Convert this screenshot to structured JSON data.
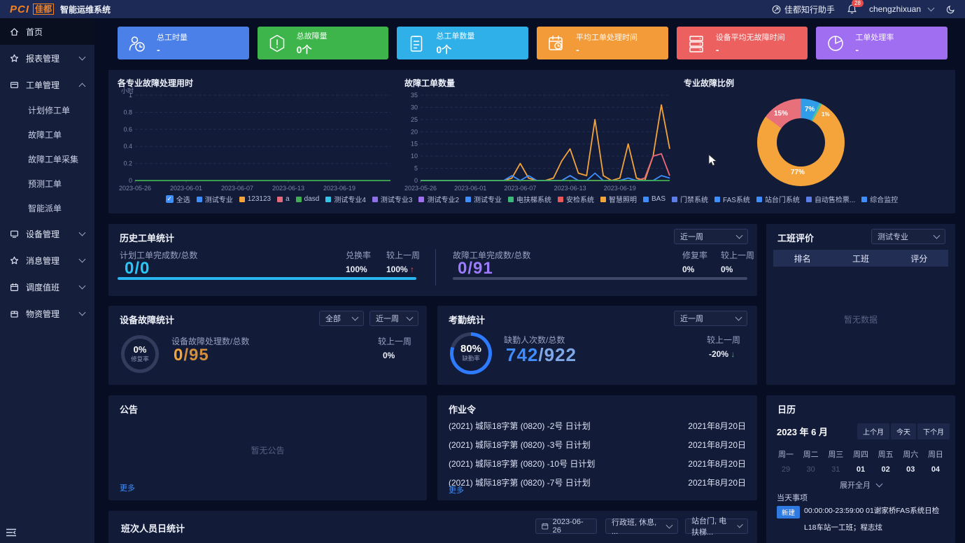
{
  "header": {
    "logo_pci": "PCI",
    "logo_jiadu": "佳都",
    "app_title": "智能运维系统",
    "assistant_label": "佳都知行助手",
    "notification_count": "28",
    "username": "chengzhixuan"
  },
  "sidebar": {
    "items": [
      {
        "name": "home",
        "label": "首页",
        "icon": "home-icon",
        "type": "item",
        "active": true
      },
      {
        "name": "reports",
        "label": "报表管理",
        "icon": "report-icon",
        "type": "item",
        "arrow": "down"
      },
      {
        "name": "workorders",
        "label": "工单管理",
        "icon": "workorder-icon",
        "type": "item",
        "arrow": "up"
      },
      {
        "name": "planned-repair-workorder",
        "label": "计划修工单",
        "type": "child"
      },
      {
        "name": "fault-workorder",
        "label": "故障工单",
        "type": "child"
      },
      {
        "name": "fault-workorder-collect",
        "label": "故障工单采集",
        "type": "child"
      },
      {
        "name": "forecast-workorder",
        "label": "预测工单",
        "type": "child"
      },
      {
        "name": "smart-dispatch",
        "label": "智能派单",
        "type": "child"
      },
      {
        "name": "devices",
        "label": "设备管理",
        "icon": "device-icon",
        "type": "item",
        "arrow": "down"
      },
      {
        "name": "messages",
        "label": "消息管理",
        "icon": "message-icon",
        "type": "item",
        "arrow": "down"
      },
      {
        "name": "dispatch-duty",
        "label": "调度值班",
        "icon": "schedule-icon",
        "type": "item",
        "arrow": "down"
      },
      {
        "name": "materials",
        "label": "物资管理",
        "icon": "material-icon",
        "type": "item",
        "arrow": "down"
      }
    ]
  },
  "stat_cards": [
    {
      "title": "总工时量",
      "value": "-",
      "color": "#4a80e8",
      "icon": "user-clock-icon"
    },
    {
      "title": "总故障量",
      "value": "0个",
      "color": "#3db54a",
      "icon": "alert-hexagon-icon"
    },
    {
      "title": "总工单数量",
      "value": "0个",
      "color": "#2fb0e8",
      "icon": "clipboard-icon"
    },
    {
      "title": "平均工单处理时间",
      "value": "-",
      "color": "#f29b38",
      "icon": "calendar-clock-icon"
    },
    {
      "title": "设备平均无故障时间",
      "value": "-",
      "color": "#ec6060",
      "icon": "server-icon"
    },
    {
      "title": "工单处理率",
      "value": "-",
      "color": "#a06ef0",
      "icon": "pie-chart-icon"
    }
  ],
  "chart_data": [
    {
      "type": "line",
      "title": "各专业故障处理用时",
      "ylabel": "小时",
      "yticks": [
        0,
        0.2,
        0.4,
        0.6,
        0.8,
        1
      ],
      "ylim": [
        0,
        1
      ],
      "x_tick_labels": [
        "2023-05-26",
        "2023-06-01",
        "2023-06-07",
        "2023-06-13",
        "2023-06-19"
      ],
      "x_tick_pos": [
        0,
        6,
        12,
        18,
        24
      ],
      "x_count": 31,
      "series": [
        {
          "name": "dasd",
          "color": "#3fae52",
          "values": [
            0,
            0,
            0,
            0,
            0,
            0,
            0,
            0,
            0,
            0,
            0,
            0,
            0,
            0,
            0,
            0,
            0,
            0,
            0,
            0,
            0,
            0,
            0,
            0,
            0,
            0,
            0,
            0,
            0,
            0,
            0
          ]
        }
      ]
    },
    {
      "type": "line",
      "title": "故障工单数量",
      "ylabel": "",
      "yticks": [
        0,
        5,
        10,
        15,
        20,
        25,
        30,
        35
      ],
      "ylim": [
        0,
        35
      ],
      "x_tick_labels": [
        "2023-05-26",
        "2023-06-01",
        "2023-06-07",
        "2023-06-13",
        "2023-06-19"
      ],
      "x_tick_pos": [
        0,
        6,
        12,
        18,
        24
      ],
      "x_count": 31,
      "series": [
        {
          "name": "123123",
          "color": "#f5a43c",
          "values": [
            0,
            0,
            0,
            0,
            0,
            0,
            0,
            0,
            0,
            0,
            0,
            1,
            7,
            1,
            0,
            0,
            1,
            8,
            13,
            3,
            2,
            25,
            2,
            0,
            1,
            15,
            1,
            0,
            10,
            31,
            13
          ]
        },
        {
          "name": "a",
          "color": "#e86a78",
          "values": [
            0,
            0,
            0,
            0,
            0,
            0,
            0,
            0,
            0,
            0,
            0,
            0,
            0,
            0,
            0,
            0,
            0,
            0,
            2,
            0,
            0,
            0,
            0,
            0,
            0,
            0,
            0,
            1,
            10,
            11,
            2
          ]
        },
        {
          "name": "测试专业",
          "color": "#3d8eff",
          "values": [
            0,
            0,
            0,
            0,
            0,
            0,
            0,
            0,
            0,
            0,
            0,
            2,
            0,
            2,
            0,
            0,
            0,
            0,
            2,
            0,
            0,
            3,
            0,
            0,
            0,
            1,
            0,
            0,
            0,
            2,
            1
          ]
        },
        {
          "name": "dasd",
          "color": "#3fae52",
          "values": [
            0,
            0,
            0,
            0,
            0,
            0,
            0,
            0,
            0,
            0,
            0,
            0,
            0,
            0,
            0,
            0,
            0,
            0,
            0,
            0,
            0,
            0,
            0,
            0,
            0,
            0,
            0,
            0,
            0,
            0,
            0
          ]
        }
      ]
    },
    {
      "type": "pie",
      "title": "专业故障比例",
      "values": [
        7,
        1,
        77,
        15
      ],
      "colors": [
        "#2f9de8",
        "#4ac0a8",
        "#f5a43c",
        "#e8707a"
      ],
      "labels": [
        "7%",
        "1%",
        "77%",
        "15%"
      ]
    }
  ],
  "legend": {
    "select_all": "全选",
    "items": [
      {
        "label": "测试专业",
        "color": "#3d8eff"
      },
      {
        "label": "123123",
        "color": "#f5a43c"
      },
      {
        "label": "a",
        "color": "#e86a78"
      },
      {
        "label": "dasd",
        "color": "#3fae52"
      },
      {
        "label": "测试专业4",
        "color": "#35c3e8"
      },
      {
        "label": "测试专业3",
        "color": "#8d6fe8"
      },
      {
        "label": "测试专业2",
        "color": "#a06ef0"
      },
      {
        "label": "测试专业",
        "color": "#3d8eff"
      },
      {
        "label": "电扶梯系统",
        "color": "#3cb878"
      },
      {
        "label": "安检系统",
        "color": "#e85858"
      },
      {
        "label": "智慧照明",
        "color": "#f5a43c"
      },
      {
        "label": "BAS",
        "color": "#3d8eff"
      },
      {
        "label": "门禁系统",
        "color": "#5a7de8"
      },
      {
        "label": "FAS系统",
        "color": "#3d8eff"
      },
      {
        "label": "站台门系统",
        "color": "#3d8eff"
      },
      {
        "label": "自动售检票...",
        "color": "#5a7de8"
      },
      {
        "label": "综合监控",
        "color": "#3d8eff"
      }
    ]
  },
  "history": {
    "title": "历史工单统计",
    "range": "近一周",
    "plan": {
      "label": "计划工单完成数/总数",
      "value": "0/0",
      "rate_label": "兑换率",
      "rate": "100%",
      "wow_label": "较上一周",
      "wow": "100%",
      "progress": 100
    },
    "fault": {
      "label": "故障工单完成数/总数",
      "value": "0/91",
      "rate_label": "修复率",
      "rate": "0%",
      "wow_label": "较上一周",
      "wow": "0%",
      "progress": 0
    }
  },
  "team_rating": {
    "title": "工班评价",
    "filter": "测试专业",
    "columns": [
      "排名",
      "工班",
      "评分"
    ],
    "empty": "暂无数据"
  },
  "device_fault": {
    "title": "设备故障统计",
    "filter1": "全部",
    "filter2": "近一周",
    "gauge_value": "0%",
    "gauge_label": "修复率",
    "percent": 0,
    "label": "设备故障处理数/总数",
    "value_main": "0",
    "value_total": "/95",
    "wow_label": "较上一周",
    "wow": "0%"
  },
  "attendance": {
    "title": "考勤统计",
    "filter": "近一周",
    "gauge_value": "80%",
    "gauge_label": "缺勤率",
    "percent": 80,
    "label": "缺勤人次数/总数",
    "value_main": "742",
    "value_total": "/922",
    "wow_label": "较上一周",
    "wow": "-20%"
  },
  "announcement": {
    "title": "公告",
    "empty": "暂无公告",
    "more": "更多"
  },
  "work_order_panel": {
    "title": "作业令",
    "more": "更多",
    "rows": [
      {
        "name": "(2021) 城际18字第 (0820) -2号 日计划",
        "date": "2021年8月20日"
      },
      {
        "name": "(2021) 城际18字第 (0820) -3号 日计划",
        "date": "2021年8月20日"
      },
      {
        "name": "(2021) 城际18字第 (0820) -10号 日计划",
        "date": "2021年8月20日"
      },
      {
        "name": "(2021) 城际18字第 (0820) -7号 日计划",
        "date": "2021年8月20日"
      }
    ]
  },
  "calendar": {
    "title": "日历",
    "month": "2023 年 6 月",
    "prev": "上个月",
    "today": "今天",
    "next": "下个月",
    "weekdays": [
      "周一",
      "周二",
      "周三",
      "周四",
      "周五",
      "周六",
      "周日"
    ],
    "days": [
      {
        "d": "29",
        "dim": true
      },
      {
        "d": "30",
        "dim": true
      },
      {
        "d": "31",
        "dim": true
      },
      {
        "d": "01"
      },
      {
        "d": "02"
      },
      {
        "d": "03"
      },
      {
        "d": "04"
      }
    ],
    "expand": "展开全月",
    "today_section": "当天事项",
    "event": {
      "badge": "新建",
      "text": "00:00:00-23:59:00  01谢家桥FAS系统日检",
      "line2": "L18车站一工班；程志炫"
    }
  },
  "shift_stats": {
    "title": "班次人员日统计",
    "date": "2023-06-26",
    "filter1": "行政班, 休息, ...",
    "filter2": "站台门, 电扶梯..."
  }
}
